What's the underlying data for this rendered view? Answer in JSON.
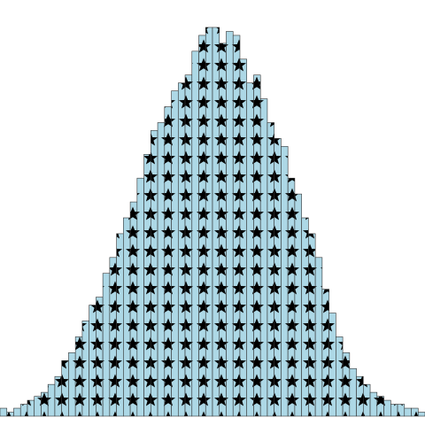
{
  "chart_data": {
    "type": "bar",
    "title": "",
    "xlabel": "",
    "ylabel": "",
    "values": [
      2,
      1,
      2,
      3,
      4,
      5,
      6,
      8,
      10,
      14,
      16,
      20,
      24,
      28,
      30,
      36,
      40,
      46,
      50,
      54,
      60,
      66,
      72,
      74,
      78,
      82,
      84,
      86,
      92,
      96,
      98,
      98,
      94,
      97,
      96,
      90,
      84,
      86,
      80,
      74,
      70,
      68,
      60,
      56,
      50,
      46,
      40,
      32,
      26,
      20,
      16,
      12,
      10,
      8,
      6,
      5,
      4,
      3,
      3,
      2,
      2,
      1
    ],
    "ylim": [
      0,
      100
    ],
    "bar_color": "#add8e6",
    "edge_color": "#333333",
    "hatch": "star",
    "hatch_color": "#000000",
    "grid": false,
    "axes_visible": false
  }
}
